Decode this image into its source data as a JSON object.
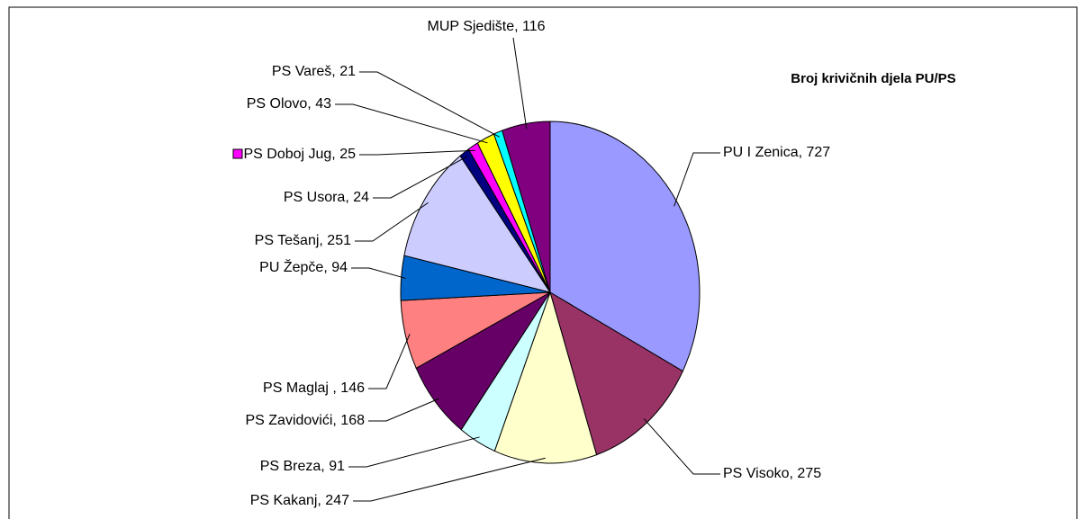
{
  "chart_data": {
    "type": "pie",
    "title": "Broj krivičnih djela PU/PS",
    "values": [
      727,
      275,
      247,
      91,
      168,
      146,
      94,
      251,
      24,
      25,
      43,
      21,
      116
    ],
    "value_labels": [
      "PU I Zenica, 727",
      "PS Visoko, 275",
      "PS Kakanj, 247",
      "PS Breza, 91",
      "PS Zavidovići, 168",
      "PS Maglaj , 146",
      "PU Žepče, 94",
      "PS Tešanj, 251",
      "PS Usora, 24",
      "PS Doboj Jug, 25",
      "PS Olovo, 43",
      "PS Vareš, 21",
      "MUP Sjedište, 116"
    ],
    "colors": [
      "#9999ff",
      "#993366",
      "#ffffcc",
      "#ccffff",
      "#660066",
      "#ff8080",
      "#0066cc",
      "#ccccff",
      "#000080",
      "#ff00ff",
      "#ffff00",
      "#00ffff",
      "#800080"
    ]
  }
}
